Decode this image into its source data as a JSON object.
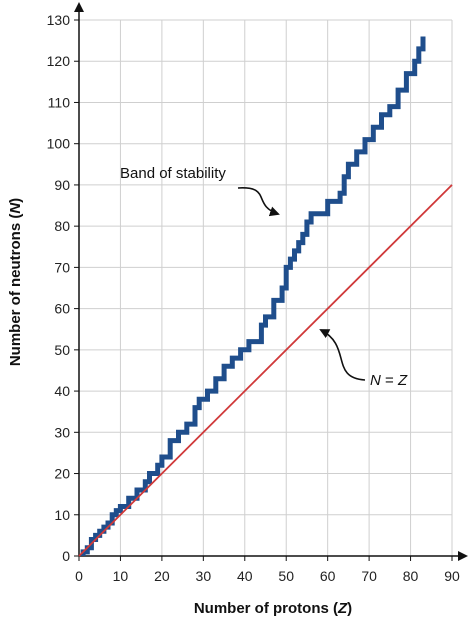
{
  "chart_data": {
    "type": "line",
    "xlabel": {
      "prefix": "Number of protons (",
      "symbol": "Z",
      "suffix": ")"
    },
    "ylabel": {
      "prefix": "Number of neutrons (",
      "symbol": "N",
      "suffix": ")"
    },
    "xlim": [
      0,
      90
    ],
    "ylim": [
      0,
      130
    ],
    "xticks": [
      0,
      10,
      20,
      30,
      40,
      50,
      60,
      70,
      80,
      90
    ],
    "yticks": [
      0,
      10,
      20,
      30,
      40,
      50,
      60,
      70,
      80,
      90,
      100,
      110,
      120,
      130
    ],
    "grid": true,
    "colors": {
      "band": "#1f4e8c",
      "line": "#d0393a",
      "grid": "#cfcfcf"
    },
    "series": [
      {
        "kind": "band",
        "points": [
          [
            1,
            0
          ],
          [
            1,
            1
          ],
          [
            2,
            1
          ],
          [
            2,
            2
          ],
          [
            3,
            2
          ],
          [
            3,
            4
          ],
          [
            4,
            4
          ],
          [
            4,
            5
          ],
          [
            5,
            5
          ],
          [
            5,
            6
          ],
          [
            6,
            6
          ],
          [
            6,
            7
          ],
          [
            7,
            7
          ],
          [
            7,
            8
          ],
          [
            8,
            8
          ],
          [
            8,
            10
          ],
          [
            9,
            10
          ],
          [
            9,
            11
          ],
          [
            10,
            11
          ],
          [
            10,
            12
          ],
          [
            12,
            12
          ],
          [
            12,
            14
          ],
          [
            14,
            14
          ],
          [
            14,
            16
          ],
          [
            16,
            16
          ],
          [
            16,
            18
          ],
          [
            17,
            18
          ],
          [
            17,
            20
          ],
          [
            19,
            20
          ],
          [
            19,
            22
          ],
          [
            20,
            22
          ],
          [
            20,
            24
          ],
          [
            22,
            24
          ],
          [
            22,
            28
          ],
          [
            24,
            28
          ],
          [
            24,
            30
          ],
          [
            26,
            30
          ],
          [
            26,
            32
          ],
          [
            28,
            32
          ],
          [
            28,
            36
          ],
          [
            29,
            36
          ],
          [
            29,
            38
          ],
          [
            31,
            38
          ],
          [
            31,
            40
          ],
          [
            33,
            40
          ],
          [
            33,
            43
          ],
          [
            35,
            43
          ],
          [
            35,
            46
          ],
          [
            37,
            46
          ],
          [
            37,
            48
          ],
          [
            39,
            48
          ],
          [
            39,
            50
          ],
          [
            41,
            50
          ],
          [
            41,
            52
          ],
          [
            44,
            52
          ],
          [
            44,
            56
          ],
          [
            45,
            56
          ],
          [
            45,
            58
          ],
          [
            47,
            58
          ],
          [
            47,
            62
          ],
          [
            49,
            62
          ],
          [
            49,
            65
          ],
          [
            50,
            65
          ],
          [
            50,
            70
          ],
          [
            51,
            70
          ],
          [
            51,
            72
          ],
          [
            52,
            72
          ],
          [
            52,
            74
          ],
          [
            53,
            74
          ],
          [
            53,
            76
          ],
          [
            54,
            76
          ],
          [
            54,
            78
          ],
          [
            55,
            78
          ],
          [
            55,
            81
          ],
          [
            56,
            81
          ],
          [
            56,
            83
          ],
          [
            60,
            83
          ],
          [
            60,
            86
          ],
          [
            63,
            86
          ],
          [
            63,
            88
          ],
          [
            64,
            88
          ],
          [
            64,
            92
          ],
          [
            65,
            92
          ],
          [
            65,
            95
          ],
          [
            67,
            95
          ],
          [
            67,
            98
          ],
          [
            69,
            98
          ],
          [
            69,
            101
          ],
          [
            71,
            101
          ],
          [
            71,
            104
          ],
          [
            73,
            104
          ],
          [
            73,
            107
          ],
          [
            75,
            107
          ],
          [
            75,
            109
          ],
          [
            77,
            109
          ],
          [
            77,
            113
          ],
          [
            79,
            113
          ],
          [
            79,
            117
          ],
          [
            81,
            117
          ],
          [
            81,
            120
          ],
          [
            82,
            120
          ],
          [
            82,
            123
          ],
          [
            83,
            123
          ],
          [
            83,
            126
          ]
        ]
      },
      {
        "kind": "line",
        "x": [
          0,
          90
        ],
        "y": [
          0,
          90
        ]
      }
    ],
    "annotations": [
      {
        "id": "band",
        "text": "Band of stability",
        "target": [
          54,
          81
        ]
      },
      {
        "id": "nz",
        "symbol_left": "N",
        "operator": " = ",
        "symbol_right": "Z",
        "target": [
          58,
          60
        ]
      }
    ]
  }
}
